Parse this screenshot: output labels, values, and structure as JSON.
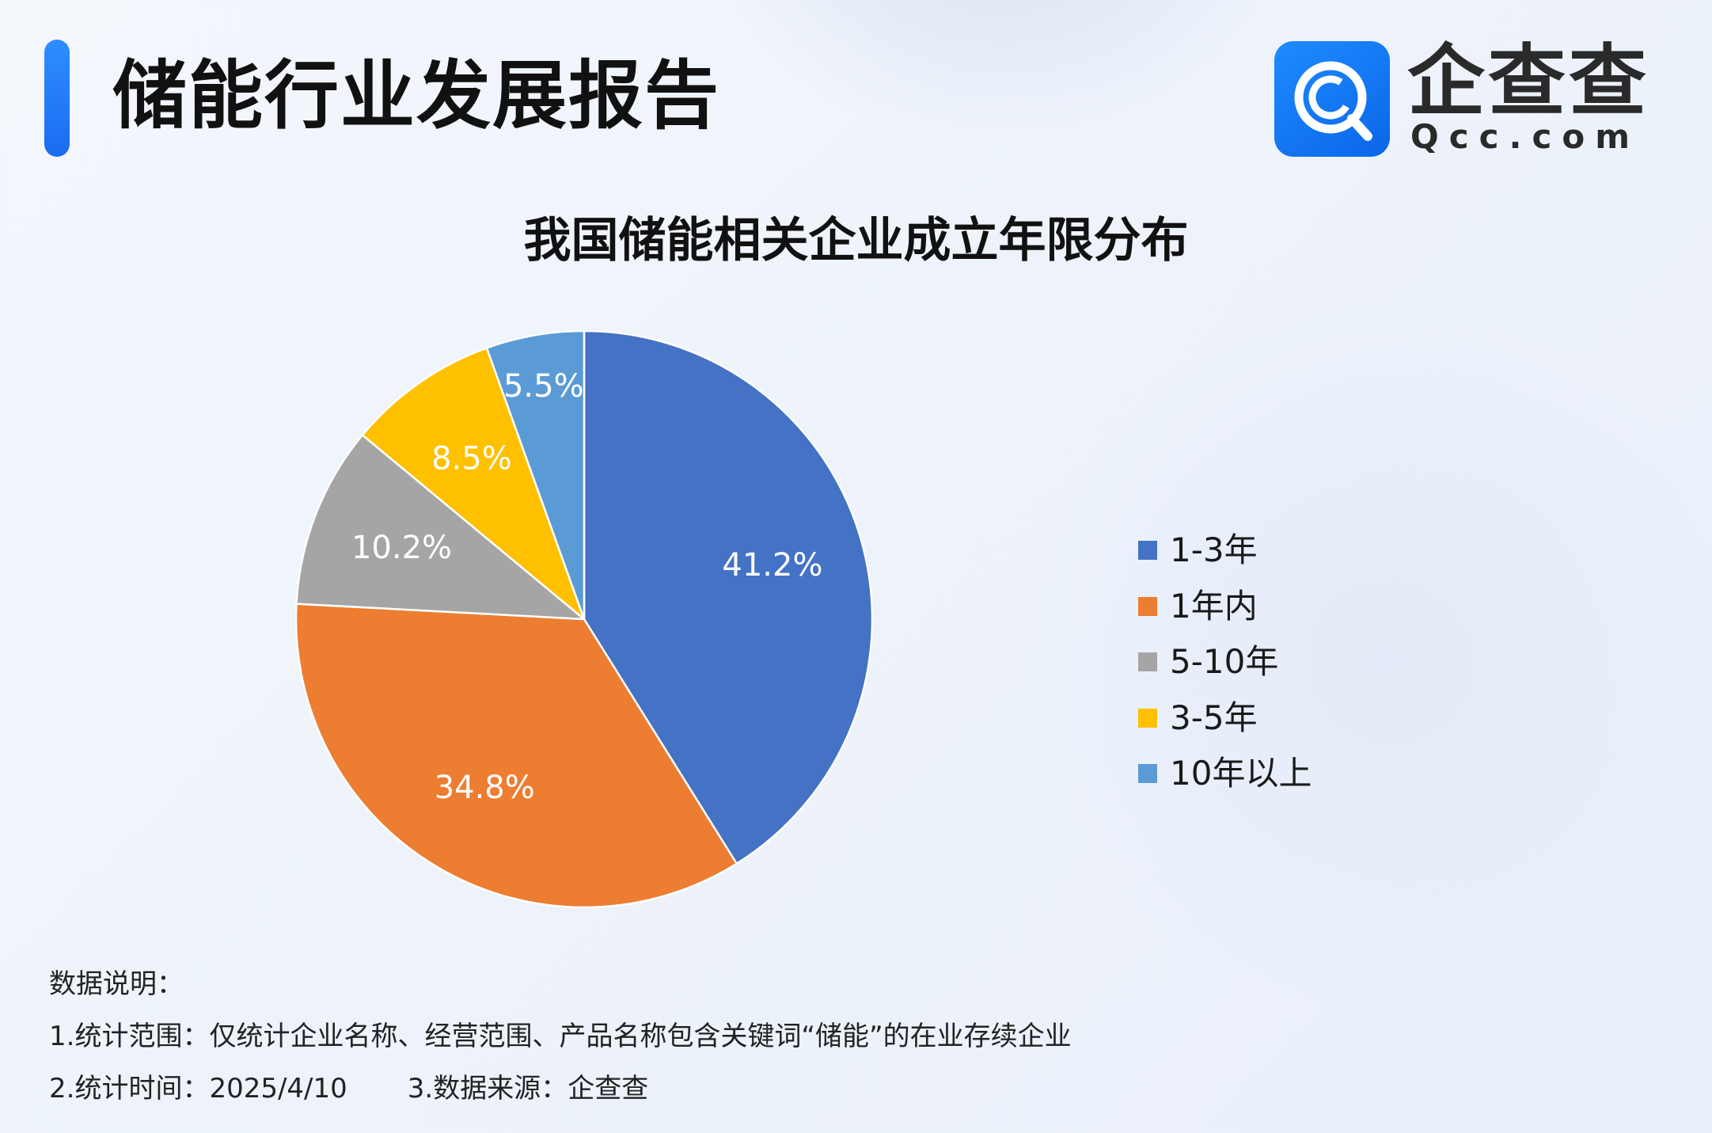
{
  "header": {
    "title": "储能行业发展报告",
    "logo_cn": "企查查",
    "logo_en": "Qcc.com",
    "accent_color": "#1a6cf0"
  },
  "chart_data": {
    "type": "pie",
    "title": "我国储能相关企业成立年限分布",
    "slices": [
      {
        "name": "1-3年",
        "value": 41.2,
        "label": "41.2%",
        "color": "#4472c4"
      },
      {
        "name": "1年内",
        "value": 34.8,
        "label": "34.8%",
        "color": "#ed7d31"
      },
      {
        "name": "5-10年",
        "value": 10.2,
        "label": "10.2%",
        "color": "#a5a5a5"
      },
      {
        "name": "3-5年",
        "value": 8.5,
        "label": "8.5%",
        "color": "#ffc000"
      },
      {
        "name": "10年以上",
        "value": 5.5,
        "label": "5.5%",
        "color": "#5b9bd5"
      }
    ],
    "legend_position": "right",
    "start_angle": "12 o'clock",
    "direction": "clockwise"
  },
  "notes": {
    "heading": "数据说明：",
    "scope": "1.统计范围：仅统计企业名称、经营范围、产品名称包含关键词“储能”的在业存续企业",
    "time": "2.统计时间：2025/4/10",
    "source": "3.数据来源：企查查"
  }
}
